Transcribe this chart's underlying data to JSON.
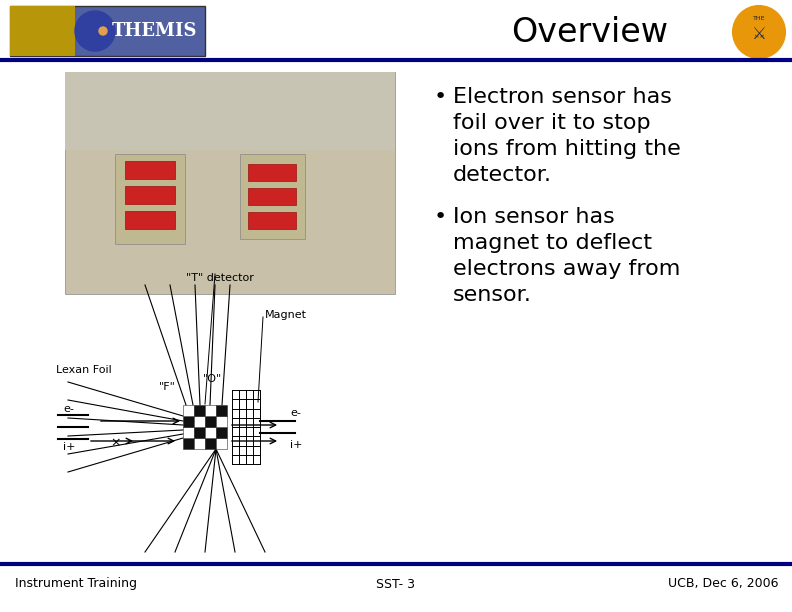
{
  "title": "Overview",
  "footer_left": "Instrument Training",
  "footer_center": "SST- 3",
  "footer_right": "UCB, Dec 6, 2006",
  "bullet1_line1": "Electron sensor has",
  "bullet1_line2": "foil over it to stop",
  "bullet1_line3": "ions from hitting the",
  "bullet1_line4": "detector.",
  "bullet2_line1": "Ion sensor has",
  "bullet2_line2": "magnet to deflect",
  "bullet2_line3": "electrons away from",
  "bullet2_line4": "sensor.",
  "header_bar_color": "#000080",
  "footer_bar_color": "#000080",
  "bg_color": "#ffffff",
  "title_color": "#000000",
  "bullet_color": "#000000",
  "footer_color": "#000000",
  "diag_label_T": "\"T\" detector",
  "diag_label_LexanFoil": "Lexan Foil",
  "diag_label_F": "\"F\"",
  "diag_label_O": "\"O\"",
  "diag_label_Magnet": "Magnet",
  "diag_label_eminus_left": "e-",
  "diag_label_iplus_left": "i+",
  "diag_label_eminus_right": "e-",
  "diag_label_iplus_right": "i+"
}
